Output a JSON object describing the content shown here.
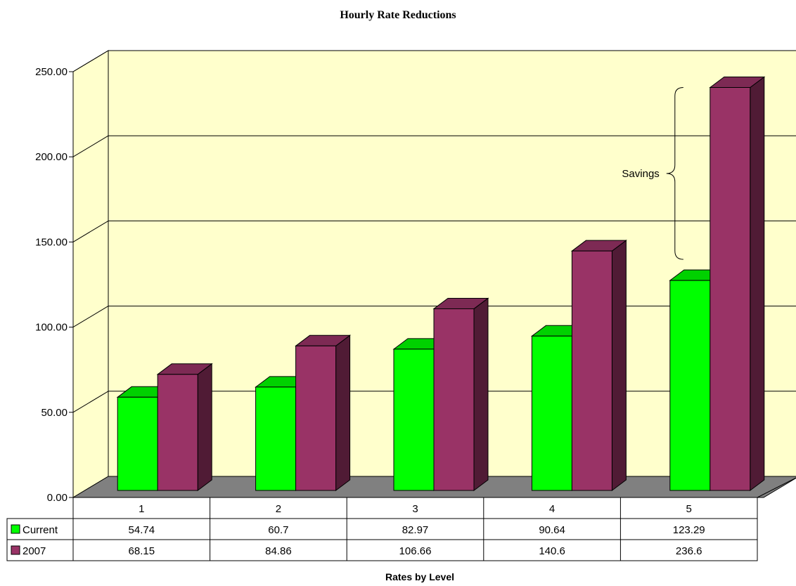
{
  "chart_data": {
    "type": "bar",
    "title": "Hourly Rate Reductions",
    "xlabel": "Rates by Level",
    "ylabel": "",
    "ylim": [
      0,
      250
    ],
    "y_ticks": [
      "0.00",
      "50.00",
      "100.00",
      "150.00",
      "200.00",
      "250.00"
    ],
    "categories": [
      "1",
      "2",
      "3",
      "4",
      "5"
    ],
    "grid": true,
    "legend": "data-table",
    "three_d": true,
    "series": [
      {
        "name": "Current",
        "values": [
          54.74,
          60.7,
          82.97,
          90.64,
          123.29
        ],
        "labels": [
          "54.74",
          "60.7",
          "82.97",
          "90.64",
          "123.29"
        ],
        "color": "#00ff00"
      },
      {
        "name": "2007",
        "values": [
          68.15,
          84.86,
          106.66,
          140.6,
          236.6
        ],
        "labels": [
          "68.15",
          "84.86",
          "106.66",
          "140.6",
          "236.6"
        ],
        "color": "#993366"
      }
    ],
    "annotation": {
      "text": "Savings",
      "category": "5"
    },
    "colors": {
      "wall": "#ffffcc",
      "floor": "#808080",
      "grid": "#000000"
    }
  }
}
